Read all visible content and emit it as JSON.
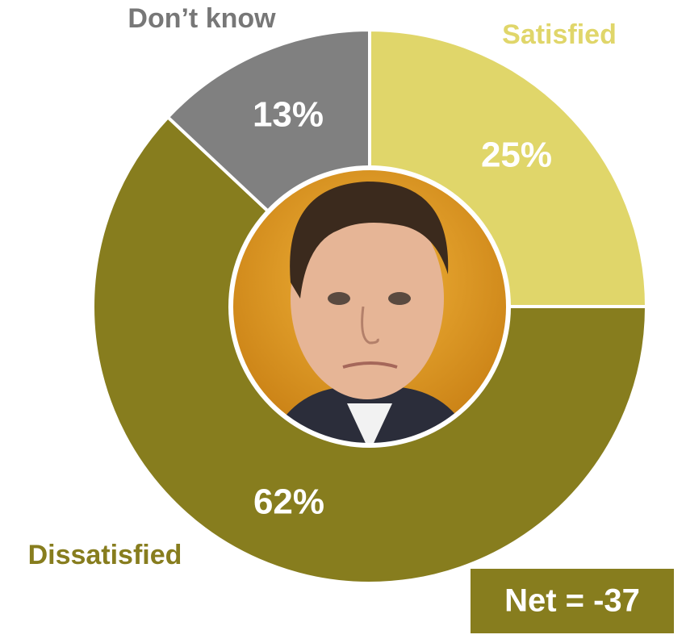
{
  "chart_data": {
    "type": "pie",
    "categories": [
      "Satisfied",
      "Dissatisfied",
      "Don’t know"
    ],
    "values": [
      25,
      62,
      13
    ],
    "value_labels": [
      "25%",
      "62%",
      "13%"
    ],
    "colors": [
      "#e0d66a",
      "#877d1e",
      "#808080"
    ],
    "annotation": "Net = -37"
  }
}
